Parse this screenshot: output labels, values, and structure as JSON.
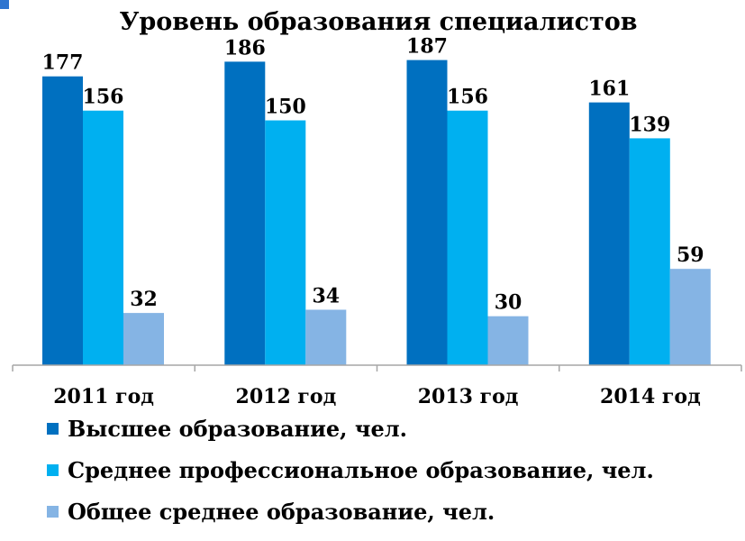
{
  "chart_data": {
    "type": "bar",
    "title": "Уровень образования специалистов",
    "categories": [
      "2011 год",
      "2012 год",
      "2013 год",
      "2014 год"
    ],
    "series": [
      {
        "name": "Высшее образование, чел.",
        "color": "#0070C0",
        "values": [
          177,
          186,
          187,
          161
        ]
      },
      {
        "name": "Среднее профессиональное образование, чел.",
        "color": "#00B0F0",
        "values": [
          156,
          150,
          156,
          139
        ]
      },
      {
        "name": "Общее среднее образование, чел.",
        "color": "#85B4E4",
        "values": [
          32,
          34,
          30,
          59
        ]
      }
    ],
    "ylim": [
      0,
      205
    ],
    "grid": false,
    "legend_position": "bottom"
  },
  "colors": {
    "marker": "#2E75D0",
    "axis": "#A6A6A6"
  }
}
